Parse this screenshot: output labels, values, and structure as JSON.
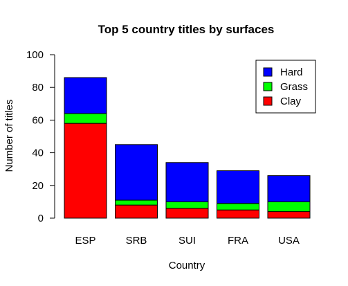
{
  "chart_data": {
    "type": "bar",
    "stacked": true,
    "title": "Top 5 country titles by surfaces",
    "xlabel": "Country",
    "ylabel": "Number of titles",
    "categories": [
      "ESP",
      "SRB",
      "SUI",
      "FRA",
      "USA"
    ],
    "ylim": [
      0,
      100
    ],
    "yticks": [
      "0",
      "20",
      "40",
      "60",
      "80",
      "100"
    ],
    "series": [
      {
        "name": "Clay",
        "color": "#ff0000",
        "values": [
          58,
          8,
          6,
          5,
          4
        ]
      },
      {
        "name": "Grass",
        "color": "#00ff00",
        "values": [
          6,
          3,
          4,
          4,
          6
        ]
      },
      {
        "name": "Hard",
        "color": "#0000ff",
        "values": [
          22,
          34,
          24,
          20,
          16
        ]
      }
    ],
    "legend": {
      "placement": "top-right",
      "order": [
        "Hard",
        "Grass",
        "Clay"
      ]
    },
    "grid": false
  }
}
